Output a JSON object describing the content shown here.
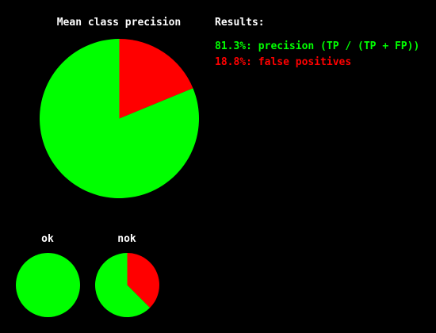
{
  "colors": {
    "background": "#000000",
    "positive": "#00ff00",
    "negative": "#ff0000",
    "text": "#ffffff"
  },
  "results": {
    "heading": "Results:",
    "precision_line": "81.3%: precision (TP / (TP + FP))",
    "false_positive_line": "18.8%: false positives"
  },
  "chart_data": [
    {
      "type": "pie",
      "title": "Mean class precision",
      "slices": [
        {
          "label": "precision",
          "value": 81.3,
          "color": "#00ff00"
        },
        {
          "label": "false positives",
          "value": 18.8,
          "color": "#ff0000"
        }
      ]
    },
    {
      "type": "pie",
      "title": "ok",
      "slices": [
        {
          "label": "precision",
          "value": 100,
          "color": "#00ff00"
        },
        {
          "label": "false positives",
          "value": 0,
          "color": "#ff0000"
        }
      ]
    },
    {
      "type": "pie",
      "title": "nok",
      "slices": [
        {
          "label": "precision",
          "value": 62.5,
          "color": "#00ff00"
        },
        {
          "label": "false positives",
          "value": 37.5,
          "color": "#ff0000"
        }
      ]
    }
  ]
}
